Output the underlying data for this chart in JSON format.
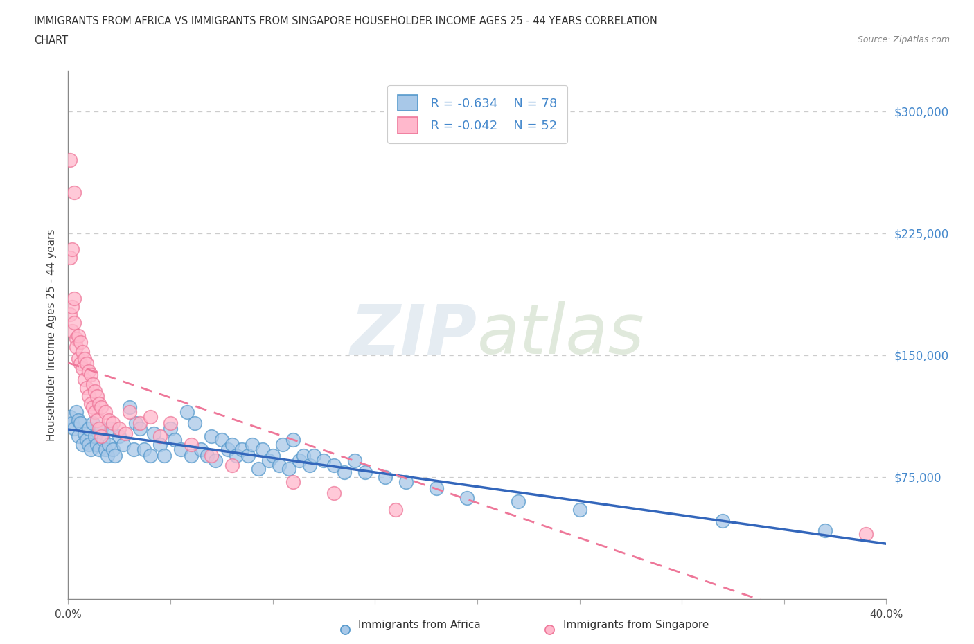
{
  "title_line1": "IMMIGRANTS FROM AFRICA VS IMMIGRANTS FROM SINGAPORE HOUSEHOLDER INCOME AGES 25 - 44 YEARS CORRELATION",
  "title_line2": "CHART",
  "source_text": "Source: ZipAtlas.com",
  "ylabel": "Householder Income Ages 25 - 44 years",
  "xlim": [
    0.0,
    0.4
  ],
  "ylim": [
    0,
    325000
  ],
  "ytick_labels": [
    "$75,000",
    "$150,000",
    "$225,000",
    "$300,000"
  ],
  "ytick_values": [
    75000,
    150000,
    225000,
    300000
  ],
  "xtick_values": [
    0.0,
    0.05,
    0.1,
    0.15,
    0.2,
    0.25,
    0.3,
    0.35,
    0.4
  ],
  "xtick_labels": [
    "0.0%",
    "",
    "",
    "",
    "",
    "",
    "",
    "",
    "40.0%"
  ],
  "legend_R_africa": "R = -0.634",
  "legend_N_africa": "N = 78",
  "legend_R_singapore": "R = -0.042",
  "legend_N_singapore": "N = 52",
  "color_africa_fill": "#a8c8e8",
  "color_africa_edge": "#5599cc",
  "color_singapore_fill": "#ffb8cc",
  "color_singapore_edge": "#ee7799",
  "color_africa_line": "#3366bb",
  "color_singapore_line": "#ee7799",
  "watermark_zip": "ZIP",
  "watermark_atlas": "atlas",
  "africa_scatter_x": [
    0.001,
    0.002,
    0.003,
    0.004,
    0.005,
    0.005,
    0.006,
    0.007,
    0.008,
    0.009,
    0.01,
    0.01,
    0.011,
    0.012,
    0.013,
    0.014,
    0.015,
    0.016,
    0.017,
    0.018,
    0.019,
    0.02,
    0.021,
    0.022,
    0.023,
    0.025,
    0.027,
    0.03,
    0.032,
    0.033,
    0.035,
    0.037,
    0.04,
    0.042,
    0.045,
    0.047,
    0.05,
    0.052,
    0.055,
    0.058,
    0.06,
    0.062,
    0.065,
    0.068,
    0.07,
    0.072,
    0.075,
    0.078,
    0.08,
    0.082,
    0.085,
    0.088,
    0.09,
    0.093,
    0.095,
    0.098,
    0.1,
    0.103,
    0.105,
    0.108,
    0.11,
    0.113,
    0.115,
    0.118,
    0.12,
    0.125,
    0.13,
    0.135,
    0.14,
    0.145,
    0.155,
    0.165,
    0.18,
    0.195,
    0.22,
    0.25,
    0.32,
    0.37
  ],
  "africa_scatter_y": [
    112000,
    108000,
    105000,
    115000,
    110000,
    100000,
    108000,
    95000,
    102000,
    98000,
    105000,
    95000,
    92000,
    108000,
    100000,
    95000,
    92000,
    105000,
    98000,
    92000,
    88000,
    95000,
    105000,
    92000,
    88000,
    100000,
    95000,
    118000,
    92000,
    108000,
    105000,
    92000,
    88000,
    102000,
    95000,
    88000,
    105000,
    98000,
    92000,
    115000,
    88000,
    108000,
    92000,
    88000,
    100000,
    85000,
    98000,
    92000,
    95000,
    88000,
    92000,
    88000,
    95000,
    80000,
    92000,
    85000,
    88000,
    82000,
    95000,
    80000,
    98000,
    85000,
    88000,
    82000,
    88000,
    85000,
    82000,
    78000,
    85000,
    78000,
    75000,
    72000,
    68000,
    62000,
    60000,
    55000,
    48000,
    42000
  ],
  "singapore_scatter_x": [
    0.001,
    0.003,
    0.001,
    0.002,
    0.001,
    0.002,
    0.002,
    0.003,
    0.003,
    0.004,
    0.004,
    0.005,
    0.005,
    0.006,
    0.006,
    0.007,
    0.007,
    0.008,
    0.008,
    0.009,
    0.009,
    0.01,
    0.01,
    0.011,
    0.011,
    0.012,
    0.012,
    0.013,
    0.013,
    0.014,
    0.014,
    0.015,
    0.015,
    0.016,
    0.016,
    0.018,
    0.02,
    0.022,
    0.025,
    0.028,
    0.03,
    0.035,
    0.04,
    0.045,
    0.05,
    0.06,
    0.07,
    0.08,
    0.11,
    0.13,
    0.16,
    0.39
  ],
  "singapore_scatter_y": [
    270000,
    250000,
    210000,
    215000,
    175000,
    180000,
    165000,
    185000,
    170000,
    160000,
    155000,
    162000,
    148000,
    158000,
    145000,
    152000,
    142000,
    148000,
    135000,
    145000,
    130000,
    140000,
    125000,
    138000,
    120000,
    132000,
    118000,
    128000,
    115000,
    125000,
    110000,
    120000,
    105000,
    118000,
    100000,
    115000,
    110000,
    108000,
    105000,
    102000,
    115000,
    108000,
    112000,
    100000,
    108000,
    95000,
    88000,
    82000,
    72000,
    65000,
    55000,
    40000
  ]
}
